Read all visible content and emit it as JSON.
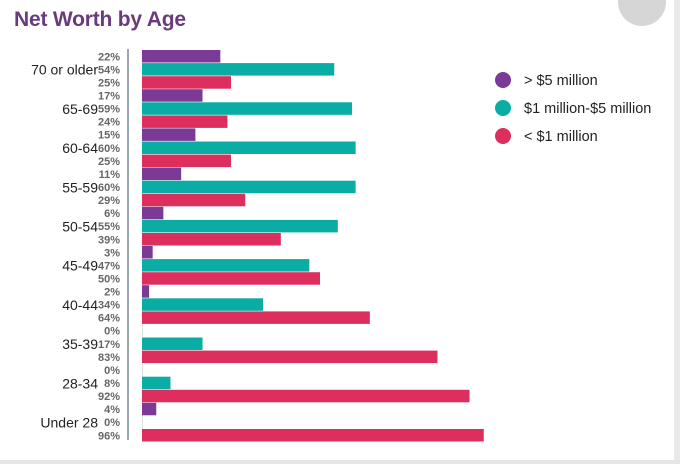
{
  "title": "Net Worth by Age",
  "watermark": "",
  "colors": {
    "over5m": "#7b3a96",
    "mid": "#0aada3",
    "under1m": "#dc2f5e",
    "divider": "#9aa7ad"
  },
  "chart_data": {
    "type": "bar",
    "orientation": "horizontal",
    "title": "Net Worth by Age",
    "xlim": [
      0,
      100
    ],
    "legend_position": "right",
    "categories": [
      "70 or older",
      "65-69",
      "60-64",
      "55-59",
      "50-54",
      "45-49",
      "40-44",
      "35-39",
      "28-34",
      "Under 28"
    ],
    "series": [
      {
        "name": "> $5 million",
        "color": "#7b3a96",
        "values": [
          22,
          17,
          15,
          11,
          6,
          3,
          2,
          0,
          0,
          4
        ]
      },
      {
        "name": "$1 million-$5 million",
        "color": "#0aada3",
        "values": [
          54,
          59,
          60,
          60,
          55,
          47,
          34,
          17,
          8,
          0
        ]
      },
      {
        "name": "< $1 million",
        "color": "#dc2f5e",
        "values": [
          25,
          24,
          25,
          29,
          39,
          50,
          64,
          83,
          92,
          96
        ]
      }
    ]
  }
}
